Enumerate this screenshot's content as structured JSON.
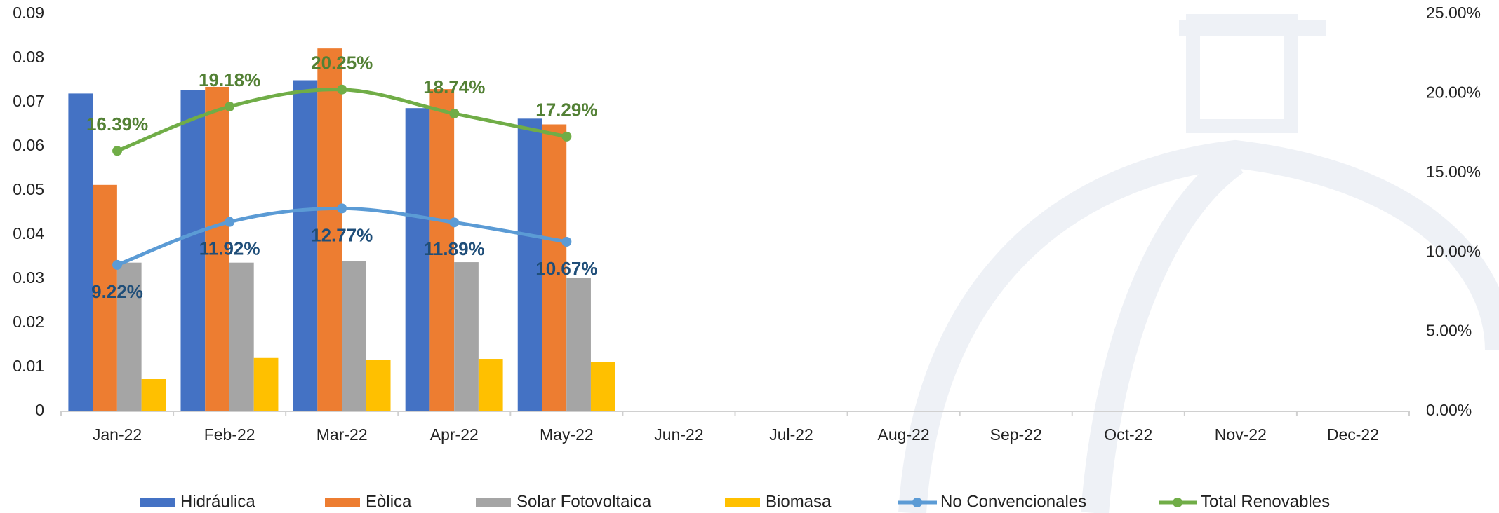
{
  "chart_data": {
    "type": "bar",
    "categories": [
      "Jan-22",
      "Feb-22",
      "Mar-22",
      "Apr-22",
      "May-22",
      "Jun-22",
      "Jul-22",
      "Aug-22",
      "Sep-22",
      "Oct-22",
      "Nov-22",
      "Dec-22"
    ],
    "ylim": [
      0,
      0.09
    ],
    "yticks": [
      0,
      0.01,
      0.02,
      0.03,
      0.04,
      0.05,
      0.06,
      0.07,
      0.08,
      0.09
    ],
    "y2lim": [
      0,
      25
    ],
    "y2ticks": [
      {
        "value": 0,
        "label": "0.00%"
      },
      {
        "value": 5,
        "label": "5.00%"
      },
      {
        "value": 10,
        "label": "10.00%"
      },
      {
        "value": 15,
        "label": "15.00%"
      },
      {
        "value": 20,
        "label": "20.00%"
      },
      {
        "value": 25,
        "label": "25.00%"
      }
    ],
    "series": [
      {
        "name": "Hidráulica",
        "type": "bar",
        "color": "#4472c4",
        "values": [
          0.072,
          0.0728,
          0.075,
          0.0687,
          0.0663,
          null,
          null,
          null,
          null,
          null,
          null,
          null
        ]
      },
      {
        "name": "Eòlica",
        "type": "bar",
        "color": "#ed7d31",
        "values": [
          0.0513,
          0.0735,
          0.0822,
          0.073,
          0.065,
          null,
          null,
          null,
          null,
          null,
          null,
          null
        ]
      },
      {
        "name": "Solar Fotovoltaica",
        "type": "bar",
        "color": "#a5a5a5",
        "values": [
          0.0337,
          0.0337,
          0.0341,
          0.0338,
          0.0303,
          null,
          null,
          null,
          null,
          null,
          null,
          null
        ]
      },
      {
        "name": "Biomasa",
        "type": "bar",
        "color": "#ffc000",
        "values": [
          0.0073,
          0.0121,
          0.0116,
          0.0119,
          0.0112,
          null,
          null,
          null,
          null,
          null,
          null,
          null
        ]
      },
      {
        "name": "No Convencionales",
        "type": "line",
        "axis": "y2",
        "color": "#5b9bd5",
        "label_color": "#1f4e79",
        "values": [
          9.22,
          11.92,
          12.77,
          11.89,
          10.67,
          null,
          null,
          null,
          null,
          null,
          null,
          null
        ],
        "value_labels": [
          "9.22%",
          "11.92%",
          "12.77%",
          "11.89%",
          "10.67%",
          null,
          null,
          null,
          null,
          null,
          null,
          null
        ]
      },
      {
        "name": "Total Renovables",
        "type": "line",
        "axis": "y2",
        "color": "#70ad47",
        "label_color": "#538135",
        "values": [
          16.39,
          19.18,
          20.25,
          18.74,
          17.29,
          null,
          null,
          null,
          null,
          null,
          null,
          null
        ],
        "value_labels": [
          "16.39%",
          "19.18%",
          "20.25%",
          "18.74%",
          "17.29%",
          null,
          null,
          null,
          null,
          null,
          null,
          null
        ]
      }
    ]
  }
}
